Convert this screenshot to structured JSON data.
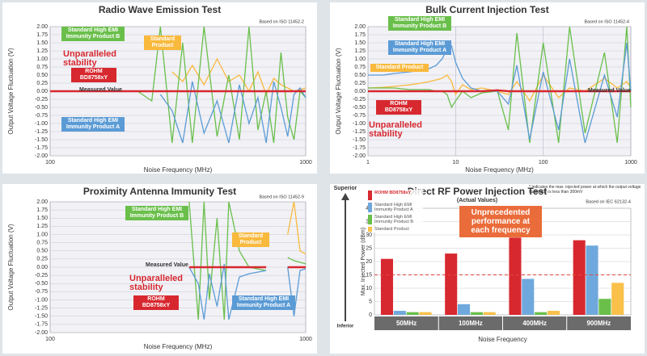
{
  "chart_data": [
    {
      "type": "line",
      "title": "Radio Wave Emission Test",
      "note": "Based on ISO 11452-2",
      "xlabel": "Noise Frequency (MHz)",
      "ylabel": "Output Voltage Fluctuation (V)",
      "log_x": true,
      "grid": true,
      "annotations": [
        "Unparalleled stability",
        "Measured Value"
      ],
      "x": [
        100,
        120,
        150,
        180,
        200,
        220,
        250,
        270,
        300,
        330,
        360,
        400,
        450,
        500,
        550,
        600,
        650,
        700,
        750,
        800,
        850,
        900,
        950,
        1000
      ],
      "series": [
        {
          "name": "ROHM BD8758xY",
          "color": "#d7282f",
          "values": [
            0,
            0,
            0,
            0,
            0,
            0,
            0,
            0,
            0,
            0,
            0,
            0,
            0,
            0,
            0,
            0,
            0,
            0,
            0,
            0,
            0,
            0,
            0,
            0
          ]
        },
        {
          "name": "Standard High EMI Immunity Product A",
          "color": "#5b9bd5",
          "values": [
            null,
            null,
            null,
            null,
            null,
            null,
            null,
            -0.1,
            -0.6,
            -1.6,
            0.3,
            -1.3,
            -0.3,
            -1.6,
            0.2,
            -1.0,
            -0.2,
            -1.6,
            0.3,
            -0.5,
            -1.4,
            -0.1,
            0.1,
            -0.2
          ]
        },
        {
          "name": "Standard High EMI Immunity Product B",
          "color": "#6abf4b",
          "values": [
            null,
            null,
            null,
            null,
            null,
            0,
            -0.3,
            2,
            -1.6,
            1.5,
            -1.6,
            2,
            -1.4,
            0.5,
            -1.5,
            2,
            -1.2,
            0,
            -1.6,
            1.2,
            -0.8,
            -1.5,
            0,
            -0.2
          ]
        },
        {
          "name": "Standard Product",
          "color": "#f9b93c",
          "values": [
            null,
            null,
            null,
            null,
            null,
            null,
            null,
            null,
            0.6,
            0.3,
            0.8,
            0.2,
            1.0,
            0.3,
            0.5,
            0,
            0.6,
            -0.1,
            0.4,
            0.2,
            0.1,
            0,
            0.05,
            0.1
          ]
        }
      ],
      "xlim": [
        100,
        1000
      ],
      "xticks": [
        100,
        1000
      ],
      "ylim": [
        -2,
        2
      ],
      "yticks": [
        {
          "value": 2,
          "label": "2.00"
        },
        1.75,
        {
          "value": 1.5,
          "label": "1.50"
        },
        1.25,
        {
          "value": 1,
          "label": "1.00"
        },
        0.75,
        {
          "value": 0.5,
          "label": "0.50"
        },
        0.25,
        {
          "value": 0,
          "label": "0.00"
        },
        -0.25,
        {
          "value": -0.5,
          "label": "-0.50"
        },
        -0.75,
        {
          "value": -1,
          "label": "-1.00"
        },
        -1.25,
        {
          "value": -1.5,
          "label": "-1.50"
        },
        -1.75,
        {
          "value": -2,
          "label": "-2.00"
        }
      ]
    },
    {
      "type": "line",
      "title": "Bulk Current Injection Test",
      "note": "Based on ISO 11452-4",
      "xlabel": "Noise Frequency (MHz)",
      "ylabel": "Output Voltage Fluctuation (V)",
      "log_x": true,
      "grid": true,
      "annotations": [
        "Unparalleled stability",
        "Measured Value"
      ],
      "x": [
        1,
        1.5,
        2,
        3,
        4,
        5,
        6,
        7,
        8,
        9,
        10,
        12,
        15,
        20,
        30,
        40,
        50,
        70,
        100,
        150,
        200,
        300,
        500,
        700,
        900,
        1000
      ],
      "series": [
        {
          "name": "ROHM BD8758xY",
          "color": "#d7282f",
          "values": [
            0,
            0,
            0,
            0,
            0,
            0,
            0,
            0,
            0,
            0,
            0,
            0,
            0,
            0,
            0.03,
            0,
            0,
            0,
            0,
            0,
            0,
            0,
            0,
            0,
            0,
            0
          ]
        },
        {
          "name": "Standard High EMI Immunity Product A",
          "color": "#5b9bd5",
          "values": [
            0.5,
            0.5,
            0.55,
            0.6,
            0.65,
            0.7,
            0.8,
            1.0,
            1.3,
            1.4,
            0.9,
            0.4,
            0.1,
            0,
            0,
            -0.4,
            0.8,
            -1.5,
            0.6,
            -1.2,
            1.0,
            -1.6,
            0.5,
            -0.8,
            1.5,
            0
          ]
        },
        {
          "name": "Standard High EMI Immunity Product B",
          "color": "#6abf4b",
          "values": [
            0.1,
            0.1,
            0.1,
            0.05,
            0.05,
            0.05,
            0,
            0,
            -0.1,
            -0.5,
            -0.3,
            0,
            -0.2,
            -0.05,
            0,
            -1.2,
            1.8,
            -1.6,
            1.5,
            -1.6,
            2,
            -1.3,
            1.2,
            -1.6,
            2,
            -0.5
          ]
        },
        {
          "name": "Standard Product",
          "color": "#f9b93c",
          "values": [
            0.1,
            0.12,
            0.15,
            0.2,
            0.25,
            0.3,
            0.35,
            0.4,
            0.5,
            0.3,
            -0.1,
            0.2,
            0.05,
            0.1,
            0,
            -0.1,
            0.3,
            -0.3,
            0.5,
            -0.2,
            0.1,
            0,
            0.4,
            0.1,
            0.3,
            0.1
          ]
        }
      ],
      "xlim": [
        1,
        1000
      ],
      "xticks": [
        1,
        10,
        100,
        1000
      ],
      "ylim": [
        -2,
        2
      ],
      "yticks": [
        {
          "value": 2,
          "label": "2.00"
        },
        1.75,
        {
          "value": 1.5,
          "label": "1.50"
        },
        1.25,
        {
          "value": 1,
          "label": "1.00"
        },
        0.75,
        {
          "value": 0.5,
          "label": "0.50"
        },
        0.25,
        {
          "value": 0,
          "label": "0.00"
        },
        -0.25,
        {
          "value": -0.5,
          "label": "-0.50"
        },
        -0.75,
        {
          "value": -1,
          "label": "-1.00"
        },
        -1.25,
        {
          "value": -1.5,
          "label": "-1.50"
        },
        -1.75,
        {
          "value": -2,
          "label": "-2.00"
        }
      ]
    },
    {
      "type": "line",
      "title": "Proximity Antenna Immunity Test",
      "note": "Based on ISO 11452-9",
      "xlabel": "Noise Frequency (MHz)",
      "ylabel": "Output Voltage Fluctuation (V)",
      "log_x": true,
      "grid": true,
      "annotations": [
        "Unparalleled stability",
        "Measured Value"
      ],
      "x": [
        100,
        150,
        200,
        300,
        350,
        380,
        400,
        420,
        450,
        480,
        500,
        550,
        600,
        700,
        800,
        850,
        900,
        950,
        1000
      ],
      "series": [
        {
          "name": "ROHM BD8758xY",
          "color": "#d7282f",
          "values": [
            null,
            null,
            null,
            null,
            0,
            0,
            0,
            0,
            0,
            0,
            0,
            0,
            0,
            0,
            null,
            0,
            0,
            0,
            0
          ]
        },
        {
          "name": "Standard High EMI Immunity Product A",
          "color": "#5b9bd5",
          "values": [
            null,
            null,
            null,
            null,
            0,
            -0.5,
            -1.6,
            -0.2,
            -1.2,
            0.1,
            -1.6,
            -0.3,
            -0.2,
            -0.1,
            null,
            0,
            -1.5,
            -0.1,
            -0.05
          ]
        },
        {
          "name": "Standard High EMI Immunity Product B",
          "color": "#6abf4b",
          "values": [
            null,
            null,
            null,
            null,
            2,
            -1.6,
            2,
            -1.0,
            1.5,
            -1.6,
            2,
            0.5,
            0,
            -0.1,
            null,
            0.3,
            0.2,
            0.15,
            0.1
          ]
        },
        {
          "name": "Standard Product",
          "color": "#f9b93c",
          "values": [
            null,
            null,
            null,
            null,
            null,
            null,
            null,
            null,
            null,
            null,
            null,
            null,
            null,
            null,
            null,
            1.0,
            2,
            0.5,
            0.4
          ]
        }
      ],
      "xlim": [
        100,
        1000
      ],
      "xticks": [
        100,
        1000
      ],
      "ylim": [
        -2,
        2
      ],
      "yticks": [
        {
          "value": 2,
          "label": "2.00"
        },
        1.75,
        {
          "value": 1.5,
          "label": "1.50"
        },
        1.25,
        {
          "value": 1,
          "label": "1.00"
        },
        0.75,
        {
          "value": 0.5,
          "label": "0.50"
        },
        0.25,
        {
          "value": 0,
          "label": "0.00"
        },
        -0.25,
        {
          "value": -0.5,
          "label": "-0.50"
        },
        -0.75,
        {
          "value": -1,
          "label": "-1.00"
        },
        -1.25,
        {
          "value": -1.5,
          "label": "-1.50"
        },
        -1.75,
        {
          "value": -2,
          "label": "-2.00"
        }
      ]
    },
    {
      "type": "bar",
      "title": "Direct RF Power Injection Test",
      "subtitle": "(Actual Values)",
      "note": "* Indicates the max. injected power at which the output voltage fluctuation is less than 300mV",
      "source": "Based on IEC 62132-4",
      "xlabel": "Noise Frequency",
      "ylabel": "Max. Injected Power (dBm)",
      "axis_top": "Superior",
      "axis_bottom": "Inferior",
      "annotations": [
        "Unprecedented performance at each frequency"
      ],
      "categories": [
        "50MHz",
        "100MHz",
        "400MHz",
        "900MHz"
      ],
      "series": [
        {
          "name": "ROHM BD8758xY",
          "color": "#d7282f",
          "values": [
            21,
            23,
            29,
            28
          ]
        },
        {
          "name": "Standard High EMI Immunity Product A",
          "color": "#6fa8dc",
          "values": [
            1.5,
            4,
            13.5,
            26
          ]
        },
        {
          "name": "Standard High EMI Immunity Product B",
          "color": "#6abf4b",
          "values": [
            1,
            1,
            1,
            6
          ]
        },
        {
          "name": "Standard Product",
          "color": "#f9c04a",
          "values": [
            1,
            1,
            1.5,
            12
          ]
        }
      ],
      "reference_line": 15,
      "ylim": [
        0,
        40
      ],
      "yticks": [
        0,
        5,
        10,
        15,
        20,
        25,
        30,
        35,
        40
      ],
      "grid": true
    }
  ]
}
